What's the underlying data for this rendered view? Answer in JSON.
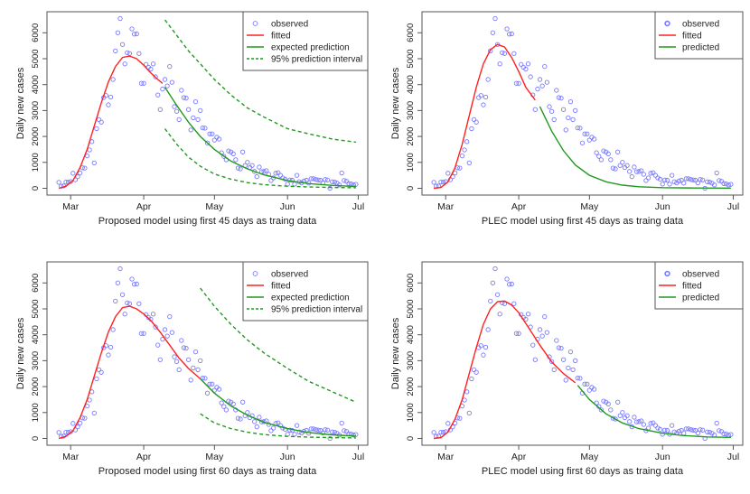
{
  "chart_data": {
    "type": "scatter",
    "colors": {
      "observed": "#7a7aff",
      "fitted": "#ff2020",
      "predicted": "#1f9a1f",
      "interval": "#1f9a1f"
    },
    "ylabel": "Daily new cases",
    "x_ticks": [
      "Mar",
      "Apr",
      "May",
      "Jun",
      "Jul"
    ],
    "x_tick_dates": [
      "03-01",
      "04-01",
      "05-01",
      "06-01",
      "07-01"
    ],
    "y_ticks": [
      0,
      1000,
      2000,
      3000,
      4000,
      5000,
      6000
    ],
    "ylim": [
      0,
      6550
    ],
    "grid": false,
    "legend_position": "top-right",
    "observed": {
      "x": [
        "02-25",
        "02-26",
        "02-27",
        "02-28",
        "02-29",
        "03-01",
        "03-02",
        "03-03",
        "03-04",
        "03-05",
        "03-06",
        "03-07",
        "03-08",
        "03-09",
        "03-10",
        "03-11",
        "03-12",
        "03-13",
        "03-14",
        "03-15",
        "03-16",
        "03-17",
        "03-18",
        "03-19",
        "03-20",
        "03-21",
        "03-22",
        "03-23",
        "03-24",
        "03-25",
        "03-26",
        "03-27",
        "03-28",
        "03-29",
        "03-30",
        "03-31",
        "04-01",
        "04-02",
        "04-03",
        "04-04",
        "04-05",
        "04-06",
        "04-07",
        "04-08",
        "04-09",
        "04-10",
        "04-11",
        "04-12",
        "04-13",
        "04-14",
        "04-15",
        "04-16",
        "04-17",
        "04-18",
        "04-19",
        "04-20",
        "04-21",
        "04-22",
        "04-23",
        "04-24",
        "04-25",
        "04-26",
        "04-27",
        "04-28",
        "04-29",
        "04-30",
        "05-01",
        "05-02",
        "05-03",
        "05-04",
        "05-05",
        "05-06",
        "05-07",
        "05-08",
        "05-09",
        "05-10",
        "05-11",
        "05-12",
        "05-13",
        "05-14",
        "05-15",
        "05-16",
        "05-17",
        "05-18",
        "05-19",
        "05-20",
        "05-21",
        "05-22",
        "05-23",
        "05-24",
        "05-25",
        "05-26",
        "05-27",
        "05-28",
        "05-29",
        "05-30",
        "05-31",
        "06-01",
        "06-02",
        "06-03",
        "06-04",
        "06-05",
        "06-06",
        "06-07",
        "06-08",
        "06-09",
        "06-10",
        "06-11",
        "06-12",
        "06-13",
        "06-14",
        "06-15",
        "06-16",
        "06-17",
        "06-18",
        "06-19",
        "06-20",
        "06-21",
        "06-22",
        "06-23",
        "06-24",
        "06-25",
        "06-26",
        "06-27",
        "06-28",
        "06-29",
        "06-30"
      ],
      "y": [
        230,
        80,
        90,
        240,
        240,
        260,
        580,
        330,
        450,
        590,
        790,
        780,
        1250,
        1480,
        1800,
        980,
        2300,
        2650,
        2550,
        3500,
        3580,
        3220,
        3520,
        4200,
        5300,
        6000,
        6550,
        5550,
        4800,
        5230,
        5200,
        6150,
        5950,
        5960,
        5200,
        4050,
        4050,
        4780,
        4670,
        4600,
        4800,
        4300,
        3600,
        3040,
        3830,
        4200,
        3950,
        4700,
        4090,
        3150,
        2970,
        2650,
        3780,
        3500,
        3480,
        3040,
        2250,
        2720,
        3340,
        2650,
        3000,
        2330,
        2320,
        1750,
        2100,
        2100,
        1860,
        1970,
        1900,
        1370,
        1230,
        1100,
        1440,
        1400,
        1330,
        1100,
        780,
        750,
        1400,
        880,
        1000,
        800,
        880,
        650,
        450,
        820,
        640,
        650,
        680,
        540,
        300,
        400,
        580,
        600,
        500,
        400,
        350,
        160,
        320,
        310,
        160,
        500,
        250,
        210,
        280,
        310,
        200,
        370,
        370,
        340,
        320,
        310,
        210,
        340,
        320,
        0,
        250,
        240,
        200,
        130,
        590,
        300,
        270,
        180,
        170,
        130,
        150
      ]
    },
    "panels": [
      {
        "title": "Proposed model using first  45  days as traing data",
        "legend": [
          "observed",
          "fitted",
          "expected prediction",
          "95% prediction interval"
        ],
        "fitted": [
          [
            "02-25",
            0
          ],
          [
            "02-28",
            80
          ],
          [
            "03-02",
            300
          ],
          [
            "03-05",
            800
          ],
          [
            "03-08",
            1500
          ],
          [
            "03-11",
            2400
          ],
          [
            "03-14",
            3300
          ],
          [
            "03-17",
            4100
          ],
          [
            "03-20",
            4700
          ],
          [
            "03-23",
            5050
          ],
          [
            "03-26",
            5100
          ],
          [
            "03-29",
            5000
          ],
          [
            "04-01",
            4750
          ],
          [
            "04-04",
            4450
          ],
          [
            "04-07",
            4200
          ],
          [
            "04-09",
            4050
          ]
        ],
        "predicted": [
          [
            "04-10",
            3900
          ],
          [
            "04-15",
            3200
          ],
          [
            "04-20",
            2550
          ],
          [
            "04-25",
            2000
          ],
          [
            "05-01",
            1500
          ],
          [
            "05-08",
            1050
          ],
          [
            "05-15",
            750
          ],
          [
            "05-22",
            520
          ],
          [
            "06-01",
            300
          ],
          [
            "06-10",
            180
          ],
          [
            "06-20",
            110
          ],
          [
            "06-30",
            70
          ]
        ],
        "upper": [
          [
            "04-10",
            6500
          ],
          [
            "04-15",
            5900
          ],
          [
            "04-20",
            5300
          ],
          [
            "04-25",
            4800
          ],
          [
            "05-01",
            4200
          ],
          [
            "05-08",
            3600
          ],
          [
            "05-15",
            3100
          ],
          [
            "05-22",
            2750
          ],
          [
            "06-01",
            2300
          ],
          [
            "06-10",
            2100
          ],
          [
            "06-20",
            1900
          ],
          [
            "06-30",
            1780
          ]
        ],
        "lower": [
          [
            "04-10",
            2300
          ],
          [
            "04-15",
            1700
          ],
          [
            "04-20",
            1200
          ],
          [
            "04-25",
            850
          ],
          [
            "05-01",
            550
          ],
          [
            "05-08",
            350
          ],
          [
            "05-15",
            220
          ],
          [
            "05-22",
            140
          ],
          [
            "06-01",
            80
          ],
          [
            "06-10",
            50
          ],
          [
            "06-20",
            30
          ],
          [
            "06-30",
            20
          ]
        ]
      },
      {
        "title": "PLEC model using first  45  days as traing data",
        "legend": [
          "observed",
          "fitted",
          "predicted"
        ],
        "fitted": [
          [
            "02-25",
            0
          ],
          [
            "02-28",
            30
          ],
          [
            "03-02",
            250
          ],
          [
            "03-05",
            800
          ],
          [
            "03-08",
            1700
          ],
          [
            "03-11",
            2800
          ],
          [
            "03-14",
            3900
          ],
          [
            "03-17",
            4800
          ],
          [
            "03-20",
            5350
          ],
          [
            "03-23",
            5550
          ],
          [
            "03-26",
            5450
          ],
          [
            "03-29",
            5050
          ],
          [
            "04-01",
            4500
          ],
          [
            "04-04",
            3900
          ],
          [
            "04-08",
            3400
          ]
        ],
        "predicted": [
          [
            "04-10",
            3150
          ],
          [
            "04-15",
            2200
          ],
          [
            "04-20",
            1450
          ],
          [
            "04-25",
            900
          ],
          [
            "05-01",
            500
          ],
          [
            "05-08",
            250
          ],
          [
            "05-15",
            120
          ],
          [
            "05-22",
            60
          ],
          [
            "06-01",
            25
          ],
          [
            "06-15",
            10
          ],
          [
            "06-30",
            5
          ]
        ]
      },
      {
        "title": "Proposed model using first  60  days as traing data",
        "legend": [
          "observed",
          "fitted",
          "expected prediction",
          "95% prediction interval"
        ],
        "fitted": [
          [
            "02-25",
            0
          ],
          [
            "02-28",
            80
          ],
          [
            "03-02",
            300
          ],
          [
            "03-05",
            800
          ],
          [
            "03-08",
            1500
          ],
          [
            "03-11",
            2400
          ],
          [
            "03-14",
            3300
          ],
          [
            "03-17",
            4100
          ],
          [
            "03-20",
            4700
          ],
          [
            "03-23",
            5050
          ],
          [
            "03-26",
            5100
          ],
          [
            "03-29",
            5000
          ],
          [
            "04-01",
            4800
          ],
          [
            "04-04",
            4550
          ],
          [
            "04-08",
            4100
          ],
          [
            "04-12",
            3600
          ],
          [
            "04-16",
            3100
          ],
          [
            "04-20",
            2700
          ],
          [
            "04-25",
            2300
          ]
        ],
        "predicted": [
          [
            "04-25",
            2300
          ],
          [
            "05-01",
            1750
          ],
          [
            "05-08",
            1250
          ],
          [
            "05-15",
            900
          ],
          [
            "05-22",
            620
          ],
          [
            "06-01",
            380
          ],
          [
            "06-10",
            230
          ],
          [
            "06-20",
            140
          ],
          [
            "06-30",
            90
          ]
        ],
        "upper": [
          [
            "04-25",
            5800
          ],
          [
            "05-01",
            5100
          ],
          [
            "05-08",
            4400
          ],
          [
            "05-15",
            3800
          ],
          [
            "05-22",
            3300
          ],
          [
            "06-01",
            2700
          ],
          [
            "06-10",
            2200
          ],
          [
            "06-20",
            1800
          ],
          [
            "06-30",
            1400
          ]
        ],
        "lower": [
          [
            "04-25",
            950
          ],
          [
            "05-01",
            600
          ],
          [
            "05-08",
            380
          ],
          [
            "05-15",
            240
          ],
          [
            "05-22",
            150
          ],
          [
            "06-01",
            80
          ],
          [
            "06-10",
            50
          ],
          [
            "06-20",
            30
          ],
          [
            "06-30",
            20
          ]
        ]
      },
      {
        "title": "PLEC model using first  60  days as traing data",
        "legend": [
          "observed",
          "fitted",
          "predicted"
        ],
        "fitted": [
          [
            "02-25",
            0
          ],
          [
            "02-28",
            30
          ],
          [
            "03-02",
            250
          ],
          [
            "03-05",
            750
          ],
          [
            "03-08",
            1500
          ],
          [
            "03-11",
            2500
          ],
          [
            "03-14",
            3500
          ],
          [
            "03-17",
            4400
          ],
          [
            "03-20",
            5000
          ],
          [
            "03-23",
            5280
          ],
          [
            "03-26",
            5300
          ],
          [
            "03-29",
            5150
          ],
          [
            "04-01",
            4850
          ],
          [
            "04-05",
            4300
          ],
          [
            "04-10",
            3600
          ],
          [
            "04-15",
            2950
          ],
          [
            "04-20",
            2500
          ],
          [
            "04-25",
            2150
          ]
        ],
        "predicted": [
          [
            "04-26",
            2050
          ],
          [
            "05-01",
            1500
          ],
          [
            "05-08",
            950
          ],
          [
            "05-15",
            600
          ],
          [
            "05-22",
            380
          ],
          [
            "06-01",
            200
          ],
          [
            "06-10",
            110
          ],
          [
            "06-20",
            60
          ],
          [
            "06-30",
            40
          ]
        ]
      }
    ]
  }
}
